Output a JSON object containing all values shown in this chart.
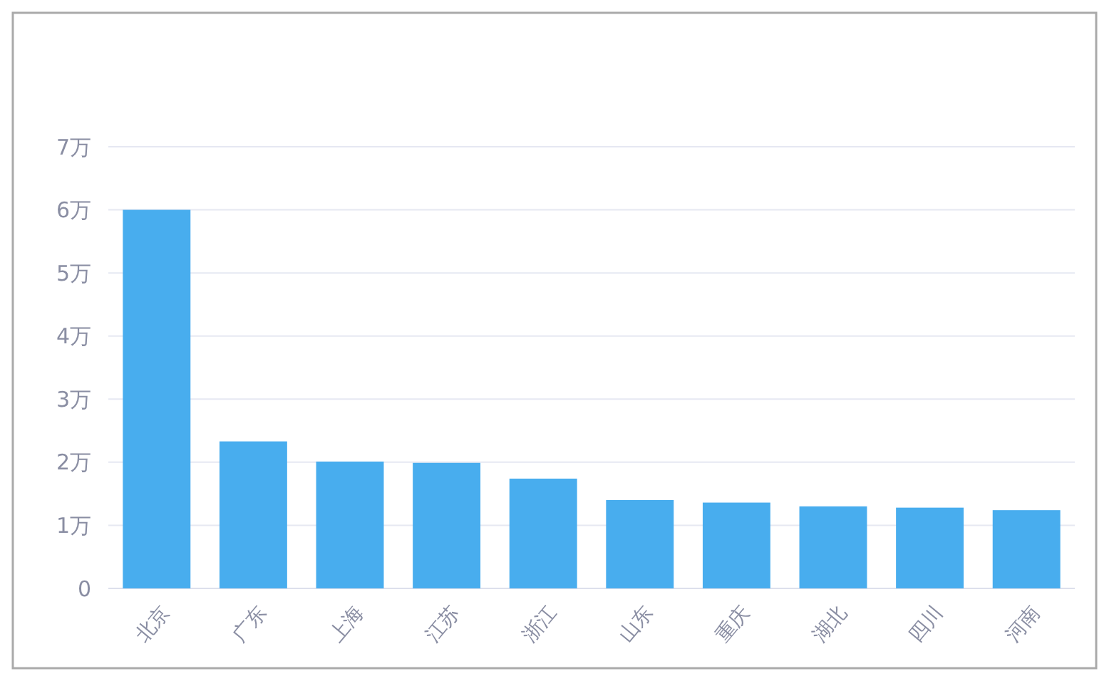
{
  "chart_data": {
    "type": "bar",
    "categories": [
      "北京",
      "广东",
      "上海",
      "江苏",
      "浙江",
      "山东",
      "重庆",
      "湖北",
      "四川",
      "河南"
    ],
    "values": [
      6.0,
      2.33,
      2.01,
      1.99,
      1.74,
      1.4,
      1.36,
      1.3,
      1.28,
      1.24
    ],
    "color": "#48adee",
    "ylim": [
      0,
      7
    ],
    "yticks": [
      0,
      {
        "value": 1,
        "label": "1万"
      },
      {
        "value": 2,
        "label": "2万"
      },
      {
        "value": 3,
        "label": "3万"
      },
      {
        "value": 4,
        "label": "4万"
      },
      {
        "value": 5,
        "label": "5万"
      },
      {
        "value": 6,
        "label": "6万"
      },
      {
        "value": 7,
        "label": "7万"
      }
    ],
    "grid": "y"
  }
}
